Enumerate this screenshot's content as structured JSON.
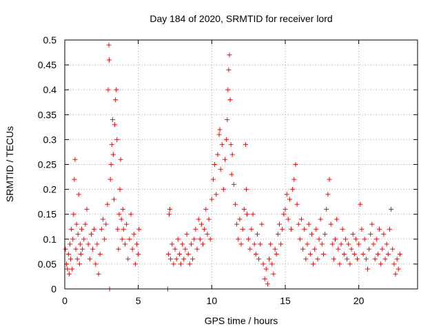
{
  "chart_data": {
    "type": "scatter",
    "title": "Day 184 of 2020, SRMTID for receiver lord",
    "xlabel": "GPS time / hours",
    "ylabel": "SRMTID / TECUs",
    "xlim": [
      0,
      24
    ],
    "ylim": [
      0,
      0.5
    ],
    "grid": true,
    "marker": "+",
    "color": "#ff0000",
    "xticks": [
      0,
      5,
      10,
      15,
      20
    ],
    "xtick_labels": [
      "0",
      "5",
      "10",
      "15",
      "20"
    ],
    "yticks": [
      0,
      0.05,
      0.1,
      0.15,
      0.2,
      0.25,
      0.3,
      0.35,
      0.4,
      0.45,
      0.5
    ],
    "ytick_labels": [
      "0",
      "0.05",
      "0.1",
      "0.15",
      "0.2",
      "0.25",
      "0.3",
      "0.35",
      "0.4",
      "0.45",
      "0.5"
    ],
    "series": [
      {
        "name": "SRMTID",
        "points": [
          [
            0.05,
            0.08
          ],
          [
            0.12,
            0.05
          ],
          [
            0.18,
            0.04
          ],
          [
            0.25,
            0.07
          ],
          [
            0.3,
            0.03
          ],
          [
            0.35,
            0.09
          ],
          [
            0.4,
            0.06
          ],
          [
            0.45,
            0.12
          ],
          [
            0.5,
            0.04
          ],
          [
            0.55,
            0.1
          ],
          [
            0.6,
            0.15
          ],
          [
            0.65,
            0.22
          ],
          [
            0.7,
            0.26
          ],
          [
            0.75,
            0.08
          ],
          [
            0.8,
            0.13
          ],
          [
            0.85,
            0.06
          ],
          [
            0.9,
            0.11
          ],
          [
            0.95,
            0.19
          ],
          [
            1.0,
            0.05
          ],
          [
            1.05,
            0.09
          ],
          [
            1.1,
            0.07
          ],
          [
            1.15,
            0.12
          ],
          [
            1.2,
            0.08
          ],
          [
            1.3,
            0.1
          ],
          [
            1.4,
            0.13
          ],
          [
            1.5,
            0.16
          ],
          [
            1.6,
            0.09
          ],
          [
            1.7,
            0.06
          ],
          [
            1.8,
            0.11
          ],
          [
            1.9,
            0.08
          ],
          [
            2.0,
            0.12
          ],
          [
            2.1,
            0.05
          ],
          [
            2.2,
            0.09
          ],
          [
            2.3,
            0.03
          ],
          [
            2.4,
            0.07
          ],
          [
            2.5,
            0.12
          ],
          [
            2.6,
            0.14
          ],
          [
            2.7,
            0.1
          ],
          [
            2.8,
            0.13
          ],
          [
            2.9,
            0.17
          ],
          [
            2.95,
            0.4
          ],
          [
            3.0,
            0.49
          ],
          [
            3.02,
            0.46
          ],
          [
            3.05,
            0.0
          ],
          [
            3.1,
            0.22
          ],
          [
            3.15,
            0.25
          ],
          [
            3.2,
            0.29
          ],
          [
            3.25,
            0.34
          ],
          [
            3.3,
            0.27
          ],
          [
            3.35,
            0.18
          ],
          [
            3.4,
            0.33
          ],
          [
            3.45,
            0.38
          ],
          [
            3.5,
            0.4
          ],
          [
            3.55,
            0.3
          ],
          [
            3.6,
            0.12
          ],
          [
            3.65,
            0.08
          ],
          [
            3.7,
            0.15
          ],
          [
            3.75,
            0.2
          ],
          [
            3.8,
            0.26
          ],
          [
            3.85,
            0.14
          ],
          [
            3.9,
            0.1
          ],
          [
            3.95,
            0.16
          ],
          [
            4.0,
            0.12
          ],
          [
            4.1,
            0.09
          ],
          [
            4.2,
            0.13
          ],
          [
            4.3,
            0.06
          ],
          [
            4.4,
            0.1
          ],
          [
            4.5,
            0.15
          ],
          [
            4.6,
            0.08
          ],
          [
            4.7,
            0.11
          ],
          [
            4.8,
            0.05
          ],
          [
            4.9,
            0.09
          ],
          [
            5.0,
            0.07
          ],
          [
            5.05,
            0.12
          ],
          [
            7.0,
            0.0
          ],
          [
            7.05,
            0.07
          ],
          [
            7.1,
            0.15
          ],
          [
            7.15,
            0.16
          ],
          [
            7.2,
            0.06
          ],
          [
            7.3,
            0.09
          ],
          [
            7.4,
            0.05
          ],
          [
            7.5,
            0.08
          ],
          [
            7.6,
            0.06
          ],
          [
            7.7,
            0.1
          ],
          [
            7.8,
            0.07
          ],
          [
            7.9,
            0.05
          ],
          [
            8.0,
            0.09
          ],
          [
            8.1,
            0.06
          ],
          [
            8.2,
            0.08
          ],
          [
            8.3,
            0.11
          ],
          [
            8.4,
            0.07
          ],
          [
            8.5,
            0.05
          ],
          [
            8.6,
            0.09
          ],
          [
            8.7,
            0.06
          ],
          [
            8.8,
            0.1
          ],
          [
            8.9,
            0.12
          ],
          [
            9.0,
            0.08
          ],
          [
            9.1,
            0.14
          ],
          [
            9.2,
            0.1
          ],
          [
            9.3,
            0.13
          ],
          [
            9.4,
            0.09
          ],
          [
            9.5,
            0.12
          ],
          [
            9.6,
            0.16
          ],
          [
            9.7,
            0.11
          ],
          [
            9.8,
            0.14
          ],
          [
            9.9,
            0.1
          ],
          [
            10.0,
            0.18
          ],
          [
            10.1,
            0.22
          ],
          [
            10.2,
            0.25
          ],
          [
            10.3,
            0.19
          ],
          [
            10.4,
            0.27
          ],
          [
            10.5,
            0.31
          ],
          [
            10.55,
            0.32
          ],
          [
            10.6,
            0.24
          ],
          [
            10.7,
            0.29
          ],
          [
            10.8,
            0.2
          ],
          [
            10.9,
            0.26
          ],
          [
            11.0,
            0.3
          ],
          [
            11.05,
            0.34
          ],
          [
            11.1,
            0.4
          ],
          [
            11.15,
            0.44
          ],
          [
            11.2,
            0.47
          ],
          [
            11.25,
            0.38
          ],
          [
            11.3,
            0.29
          ],
          [
            11.35,
            0.23
          ],
          [
            11.4,
            0.27
          ],
          [
            11.5,
            0.21
          ],
          [
            11.6,
            0.17
          ],
          [
            11.7,
            0.13
          ],
          [
            11.8,
            0.1
          ],
          [
            11.9,
            0.14
          ],
          [
            12.0,
            0.09
          ],
          [
            12.1,
            0.12
          ],
          [
            12.2,
            0.16
          ],
          [
            12.3,
            0.29
          ],
          [
            12.35,
            0.2
          ],
          [
            12.4,
            0.15
          ],
          [
            12.5,
            0.1
          ],
          [
            12.6,
            0.08
          ],
          [
            12.7,
            0.12
          ],
          [
            12.8,
            0.15
          ],
          [
            12.9,
            0.09
          ],
          [
            13.0,
            0.07
          ],
          [
            13.1,
            0.11
          ],
          [
            13.2,
            0.06
          ],
          [
            13.3,
            0.09
          ],
          [
            13.4,
            0.13
          ],
          [
            13.5,
            0.05
          ],
          [
            13.6,
            0.02
          ],
          [
            13.7,
            0.04
          ],
          [
            13.8,
            0.01
          ],
          [
            13.9,
            0.06
          ],
          [
            14.0,
            0.09
          ],
          [
            14.1,
            0.05
          ],
          [
            14.2,
            0.03
          ],
          [
            14.3,
            0.08
          ],
          [
            14.4,
            0.07
          ],
          [
            14.5,
            0.11
          ],
          [
            14.6,
            0.13
          ],
          [
            14.7,
            0.09
          ],
          [
            14.8,
            0.12
          ],
          [
            14.9,
            0.15
          ],
          [
            15.0,
            0.16
          ],
          [
            15.1,
            0.19
          ],
          [
            15.2,
            0.14
          ],
          [
            15.3,
            0.18
          ],
          [
            15.4,
            0.12
          ],
          [
            15.5,
            0.2
          ],
          [
            15.6,
            0.22
          ],
          [
            15.7,
            0.25
          ],
          [
            15.8,
            0.17
          ],
          [
            15.9,
            0.13
          ],
          [
            16.0,
            0.1
          ],
          [
            16.1,
            0.14
          ],
          [
            16.2,
            0.08
          ],
          [
            16.3,
            0.12
          ],
          [
            16.4,
            0.06
          ],
          [
            16.5,
            0.09
          ],
          [
            16.6,
            0.13
          ],
          [
            16.7,
            0.07
          ],
          [
            16.8,
            0.11
          ],
          [
            16.9,
            0.05
          ],
          [
            17.0,
            0.08
          ],
          [
            17.1,
            0.12
          ],
          [
            17.2,
            0.06
          ],
          [
            17.3,
            0.1
          ],
          [
            17.4,
            0.14
          ],
          [
            17.5,
            0.09
          ],
          [
            17.6,
            0.07
          ],
          [
            17.7,
            0.11
          ],
          [
            17.8,
            0.16
          ],
          [
            17.9,
            0.19
          ],
          [
            18.0,
            0.22
          ],
          [
            18.1,
            0.13
          ],
          [
            18.2,
            0.09
          ],
          [
            18.3,
            0.06
          ],
          [
            18.4,
            0.1
          ],
          [
            18.5,
            0.14
          ],
          [
            18.6,
            0.08
          ],
          [
            18.7,
            0.05
          ],
          [
            18.8,
            0.09
          ],
          [
            18.9,
            0.12
          ],
          [
            19.0,
            0.07
          ],
          [
            19.1,
            0.1
          ],
          [
            19.2,
            0.06
          ],
          [
            19.3,
            0.09
          ],
          [
            19.4,
            0.05
          ],
          [
            19.5,
            0.08
          ],
          [
            19.6,
            0.11
          ],
          [
            19.7,
            0.07
          ],
          [
            19.8,
            0.1
          ],
          [
            19.9,
            0.06
          ],
          [
            20.0,
            0.09
          ],
          [
            20.1,
            0.17
          ],
          [
            20.2,
            0.12
          ],
          [
            20.3,
            0.07
          ],
          [
            20.4,
            0.1
          ],
          [
            20.5,
            0.06
          ],
          [
            20.6,
            0.04
          ],
          [
            20.7,
            0.08
          ],
          [
            20.8,
            0.11
          ],
          [
            20.9,
            0.13
          ],
          [
            21.0,
            0.09
          ],
          [
            21.1,
            0.06
          ],
          [
            21.2,
            0.1
          ],
          [
            21.3,
            0.07
          ],
          [
            21.4,
            0.12
          ],
          [
            21.5,
            0.05
          ],
          [
            21.6,
            0.08
          ],
          [
            21.7,
            0.11
          ],
          [
            21.8,
            0.06
          ],
          [
            21.9,
            0.09
          ],
          [
            22.0,
            0.07
          ],
          [
            22.1,
            0.12
          ],
          [
            22.2,
            0.16
          ],
          [
            22.3,
            0.08
          ],
          [
            22.4,
            0.05
          ],
          [
            22.5,
            0.03
          ],
          [
            22.6,
            0.06
          ],
          [
            22.7,
            0.04
          ],
          [
            22.8,
            0.07
          ]
        ]
      }
    ]
  }
}
